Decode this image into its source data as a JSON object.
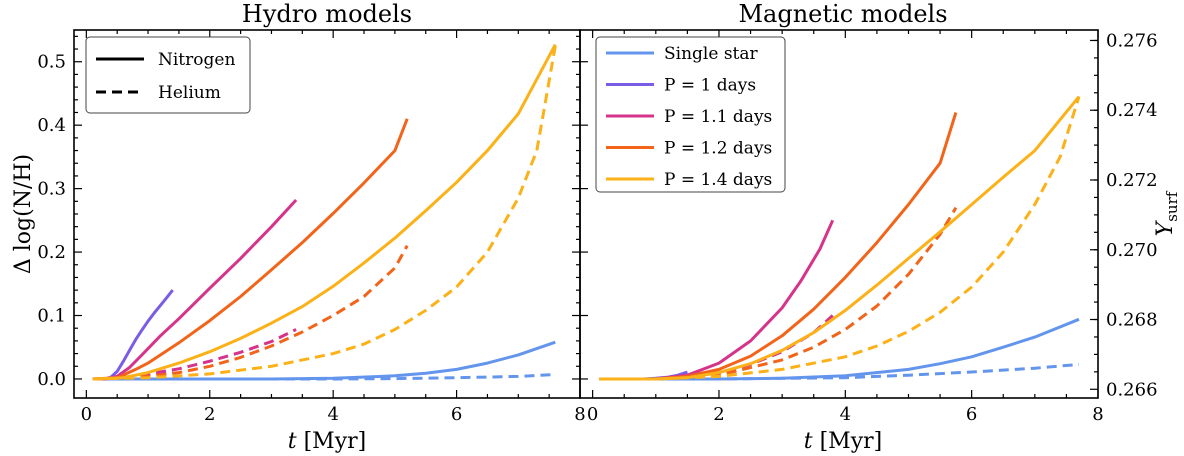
{
  "colors": {
    "single": "#6495ED",
    "p1": "#7B5CE6",
    "p11": "#D6338A",
    "p12": "#F26419",
    "p14": "#FBB117"
  },
  "chart_data": [
    {
      "type": "line",
      "title": "Hydro models",
      "xlabel": "t [Myr]",
      "ylabel": "Δ log(N/H)",
      "xlim": [
        -0.2,
        8.0
      ],
      "ylim": [
        -0.03,
        0.55
      ],
      "xticks": [
        0,
        2,
        4,
        6,
        8
      ],
      "xtick_labels": [
        "0",
        "2",
        "4",
        "6",
        "8"
      ],
      "yticks": [
        0.0,
        0.1,
        0.2,
        0.3,
        0.4,
        0.5
      ],
      "ytick_labels": [
        "0.0",
        "0.1",
        "0.2",
        "0.3",
        "0.4",
        "0.5"
      ],
      "legend": {
        "position": "top-left",
        "entries": [
          {
            "label": "Nitrogen",
            "style": "solid"
          },
          {
            "label": "Helium",
            "style": "dashed"
          }
        ]
      },
      "series": [
        {
          "key": "single",
          "quantity": "nitrogen",
          "style": "solid",
          "x": [
            0.1,
            1,
            2,
            3,
            4,
            5,
            5.5,
            6,
            6.5,
            7,
            7.6
          ],
          "y": [
            0,
            0,
            0,
            0,
            0.001,
            0.005,
            0.009,
            0.015,
            0.025,
            0.038,
            0.058
          ]
        },
        {
          "key": "single",
          "quantity": "helium",
          "style": "dashed",
          "x": [
            0.1,
            2,
            4,
            5,
            6,
            7,
            7.6
          ],
          "y": [
            0,
            0,
            0,
            0.0005,
            0.002,
            0.004,
            0.007
          ]
        },
        {
          "key": "p1",
          "quantity": "nitrogen",
          "style": "solid",
          "x": [
            0.1,
            0.3,
            0.4,
            0.5,
            0.6,
            0.7,
            0.8,
            0.9,
            1.0,
            1.1,
            1.2,
            1.3,
            1.4
          ],
          "y": [
            0,
            0,
            0.003,
            0.012,
            0.028,
            0.045,
            0.062,
            0.077,
            0.091,
            0.104,
            0.116,
            0.128,
            0.14
          ]
        },
        {
          "key": "p1",
          "quantity": "helium",
          "style": "dashed",
          "x": [
            0.1,
            0.5,
            0.8,
            1.0,
            1.2,
            1.4
          ],
          "y": [
            0,
            0.001,
            0.003,
            0.005,
            0.007,
            0.01
          ]
        },
        {
          "key": "p11",
          "quantity": "nitrogen",
          "style": "solid",
          "x": [
            0.1,
            0.3,
            0.5,
            0.7,
            0.9,
            1.2,
            1.5,
            2.0,
            2.5,
            3.0,
            3.4
          ],
          "y": [
            0,
            0,
            0.004,
            0.018,
            0.038,
            0.068,
            0.095,
            0.143,
            0.19,
            0.24,
            0.282
          ]
        },
        {
          "key": "p11",
          "quantity": "helium",
          "style": "dashed",
          "x": [
            0.1,
            0.5,
            1.0,
            1.5,
            2.0,
            2.5,
            3.0,
            3.4
          ],
          "y": [
            0,
            0.001,
            0.008,
            0.016,
            0.028,
            0.042,
            0.059,
            0.078
          ]
        },
        {
          "key": "p12",
          "quantity": "nitrogen",
          "style": "solid",
          "x": [
            0.1,
            0.5,
            0.8,
            1.0,
            1.5,
            2.0,
            2.5,
            3.0,
            3.5,
            4.0,
            4.5,
            5.0,
            5.2
          ],
          "y": [
            0,
            0.002,
            0.015,
            0.025,
            0.057,
            0.092,
            0.13,
            0.172,
            0.215,
            0.261,
            0.309,
            0.36,
            0.41
          ]
        },
        {
          "key": "p12",
          "quantity": "helium",
          "style": "dashed",
          "x": [
            0.1,
            0.5,
            1.0,
            1.5,
            2.0,
            2.5,
            3.0,
            3.5,
            4.0,
            4.5,
            5.0,
            5.2
          ],
          "y": [
            0,
            0.001,
            0.004,
            0.01,
            0.02,
            0.034,
            0.052,
            0.074,
            0.1,
            0.13,
            0.175,
            0.21
          ]
        },
        {
          "key": "p14",
          "quantity": "nitrogen",
          "style": "solid",
          "x": [
            0.1,
            0.6,
            1.0,
            1.5,
            2.0,
            2.5,
            3.0,
            3.5,
            4.0,
            4.5,
            5.0,
            5.5,
            6.0,
            6.5,
            7.0,
            7.6
          ],
          "y": [
            0,
            0.002,
            0.01,
            0.025,
            0.043,
            0.064,
            0.088,
            0.114,
            0.146,
            0.183,
            0.222,
            0.265,
            0.31,
            0.36,
            0.418,
            0.527
          ]
        },
        {
          "key": "p14",
          "quantity": "helium",
          "style": "dashed",
          "x": [
            0.1,
            1.0,
            2.0,
            3.0,
            4.0,
            4.5,
            5.0,
            5.5,
            6.0,
            6.5,
            7.0,
            7.3,
            7.6
          ],
          "y": [
            0,
            0.002,
            0.008,
            0.02,
            0.04,
            0.055,
            0.078,
            0.108,
            0.145,
            0.2,
            0.285,
            0.36,
            0.525
          ]
        }
      ]
    },
    {
      "type": "line",
      "title": "Magnetic models",
      "xlabel": "t [Myr]",
      "ylabel": "Y_surf",
      "xlim": [
        -0.2,
        8.0
      ],
      "ylim": [
        -0.03,
        0.55
      ],
      "xticks": [
        0,
        2,
        4,
        6,
        8
      ],
      "xtick_labels": [
        "0",
        "2",
        "4",
        "6",
        "8"
      ],
      "right_yticks": [
        0.266,
        0.268,
        0.27,
        0.272,
        0.274,
        0.276
      ],
      "right_ytick_labels": [
        "0.266",
        "0.268",
        "0.270",
        "0.272",
        "0.274",
        "0.276"
      ],
      "right_ylim": [
        0.26575,
        0.2763
      ],
      "legend": {
        "position": "top-left",
        "entries": [
          {
            "key": "single",
            "label": "Single star"
          },
          {
            "key": "p1",
            "label": "P = 1 days"
          },
          {
            "key": "p11",
            "label": "P = 1.1 days"
          },
          {
            "key": "p12",
            "label": "P = 1.2 days"
          },
          {
            "key": "p14",
            "label": "P = 1.4 days"
          }
        ]
      },
      "series": [
        {
          "key": "single",
          "quantity": "nitrogen",
          "style": "solid",
          "x": [
            0.1,
            1,
            2,
            3,
            4,
            5,
            5.5,
            6,
            6.5,
            7,
            7.7
          ],
          "y": [
            0,
            0,
            0,
            0.001,
            0.005,
            0.015,
            0.024,
            0.035,
            0.05,
            0.066,
            0.094
          ]
        },
        {
          "key": "single",
          "quantity": "helium",
          "style": "dashed",
          "x": [
            0.1,
            2,
            3,
            4,
            5,
            6,
            7,
            7.7
          ],
          "y": [
            0,
            0,
            0.001,
            0.002,
            0.006,
            0.011,
            0.017,
            0.023
          ]
        },
        {
          "key": "p1",
          "quantity": "nitrogen",
          "style": "solid",
          "x": [
            0.1,
            0.8,
            1.0,
            1.2,
            1.35,
            1.5
          ],
          "y": [
            0,
            0,
            0.001,
            0.003,
            0.006,
            0.011
          ]
        },
        {
          "key": "p11",
          "quantity": "nitrogen",
          "style": "solid",
          "x": [
            0.1,
            1.0,
            1.5,
            2.0,
            2.5,
            3.0,
            3.3,
            3.6,
            3.8
          ],
          "y": [
            0,
            0,
            0.006,
            0.025,
            0.06,
            0.112,
            0.155,
            0.205,
            0.25
          ]
        },
        {
          "key": "p11",
          "quantity": "helium",
          "style": "dashed",
          "x": [
            0.1,
            1.0,
            1.5,
            2.0,
            2.5,
            3.0,
            3.5,
            3.8
          ],
          "y": [
            0,
            0,
            0.003,
            0.01,
            0.023,
            0.043,
            0.073,
            0.1
          ]
        },
        {
          "key": "p12",
          "quantity": "nitrogen",
          "style": "solid",
          "x": [
            0.1,
            1.0,
            1.5,
            2.0,
            2.5,
            3.0,
            3.5,
            4.0,
            4.5,
            5.0,
            5.5,
            5.75
          ],
          "y": [
            0,
            0,
            0.004,
            0.015,
            0.036,
            0.068,
            0.11,
            0.16,
            0.215,
            0.275,
            0.34,
            0.42
          ]
        },
        {
          "key": "p12",
          "quantity": "helium",
          "style": "dashed",
          "x": [
            0.1,
            1.0,
            2.0,
            3.0,
            3.5,
            4.0,
            4.5,
            5.0,
            5.5,
            5.75
          ],
          "y": [
            0,
            0,
            0.006,
            0.03,
            0.05,
            0.078,
            0.115,
            0.165,
            0.228,
            0.27
          ]
        },
        {
          "key": "p14",
          "quantity": "nitrogen",
          "style": "solid",
          "x": [
            0.1,
            1.0,
            1.5,
            2.0,
            2.5,
            3.0,
            3.5,
            4.0,
            4.5,
            5.0,
            5.5,
            6.0,
            6.5,
            7.0,
            7.7
          ],
          "y": [
            0,
            0,
            0.002,
            0.01,
            0.024,
            0.045,
            0.073,
            0.108,
            0.148,
            0.19,
            0.232,
            0.275,
            0.318,
            0.36,
            0.445
          ]
        },
        {
          "key": "p14",
          "quantity": "helium",
          "style": "dashed",
          "x": [
            0.1,
            1.0,
            2.0,
            3.0,
            4.0,
            4.5,
            5.0,
            5.5,
            6.0,
            6.5,
            7.0,
            7.4,
            7.7
          ],
          "y": [
            0,
            0,
            0.004,
            0.015,
            0.035,
            0.052,
            0.075,
            0.105,
            0.145,
            0.2,
            0.275,
            0.35,
            0.445
          ]
        }
      ]
    }
  ]
}
